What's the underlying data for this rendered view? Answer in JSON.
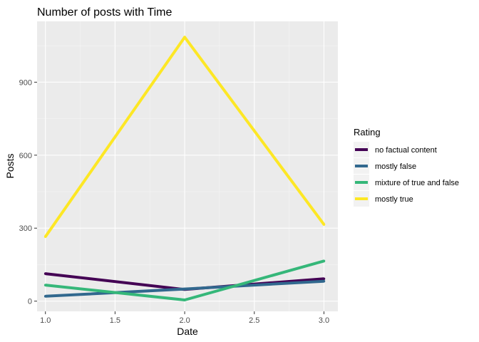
{
  "chart_data": {
    "type": "line",
    "title": "Number of posts with Time",
    "xlabel": "Date",
    "ylabel": "Posts",
    "xlim": [
      0.94,
      3.1
    ],
    "ylim": [
      -42,
      1150
    ],
    "x_ticks": [
      1.0,
      1.5,
      2.0,
      2.5,
      3.0
    ],
    "x_tick_labels": [
      "1.0",
      "1.5",
      "2.0",
      "2.5",
      "3.0"
    ],
    "y_ticks": [
      0,
      300,
      600,
      900
    ],
    "y_tick_labels": [
      "0",
      "300",
      "600",
      "900"
    ],
    "x": [
      1.0,
      2.0,
      3.0
    ],
    "legend_title": "Rating",
    "legend_position": "right",
    "grid": true,
    "series": [
      {
        "name": "no factual content",
        "values": [
          113,
          48,
          92
        ],
        "color": "#440154"
      },
      {
        "name": "mostly false",
        "values": [
          20,
          50,
          82
        ],
        "color": "#31688E"
      },
      {
        "name": "mixture of true and false",
        "values": [
          66,
          5,
          165
        ],
        "color": "#35B779"
      },
      {
        "name": "mostly true",
        "values": [
          265,
          1085,
          315
        ],
        "color": "#FDE725"
      }
    ]
  }
}
